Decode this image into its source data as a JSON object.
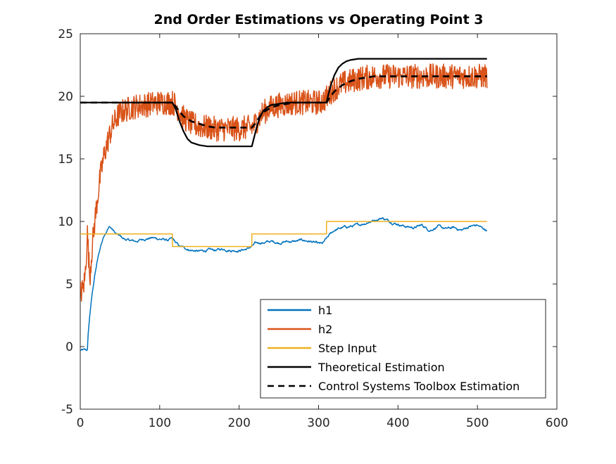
{
  "chart_data": {
    "type": "line",
    "title": "2nd Order Estimations vs Operating Point 3",
    "xlabel": "",
    "ylabel": "",
    "xlim": [
      0,
      600
    ],
    "ylim": [
      -5,
      25
    ],
    "xticks": [
      "0",
      "100",
      "200",
      "300",
      "400",
      "500",
      "600"
    ],
    "yticks": [
      "-5",
      "0",
      "5",
      "10",
      "15",
      "20",
      "25"
    ],
    "grid": false,
    "legend_position": "bottom-right",
    "series": [
      {
        "name": "h1",
        "color": "#0072BD",
        "style": "solid",
        "noise": 0.15,
        "x": [
          0,
          9,
          10,
          12,
          15,
          18,
          22,
          26,
          30,
          34,
          37,
          40,
          45,
          50,
          55,
          60,
          70,
          80,
          90,
          100,
          110,
          116,
          120,
          125,
          130,
          140,
          150,
          160,
          170,
          180,
          190,
          200,
          210,
          216,
          220,
          225,
          230,
          240,
          250,
          260,
          270,
          280,
          290,
          300,
          305,
          310,
          315,
          320,
          330,
          340,
          350,
          360,
          370,
          380,
          390,
          400,
          410,
          420,
          430,
          440,
          450,
          460,
          470,
          480,
          490,
          500,
          505,
          512
        ],
        "y": [
          -0.3,
          -0.3,
          1.0,
          2.5,
          4.2,
          5.6,
          7.0,
          8.1,
          8.9,
          9.4,
          9.6,
          9.4,
          9.0,
          8.8,
          8.6,
          8.5,
          8.4,
          8.6,
          8.7,
          8.6,
          8.5,
          8.6,
          8.3,
          8.0,
          7.9,
          7.7,
          7.6,
          7.7,
          7.7,
          7.8,
          7.7,
          7.7,
          7.8,
          8.0,
          8.2,
          8.3,
          8.3,
          8.4,
          8.3,
          8.4,
          8.4,
          8.5,
          8.4,
          8.2,
          8.2,
          8.6,
          9.0,
          9.3,
          9.5,
          9.6,
          9.7,
          9.9,
          10.1,
          10.3,
          10.0,
          9.8,
          9.6,
          9.5,
          9.7,
          9.3,
          9.6,
          9.4,
          9.5,
          9.3,
          9.6,
          9.7,
          9.5,
          9.3
        ]
      },
      {
        "name": "h2",
        "color": "#D95319",
        "style": "solid",
        "noise": 1.0,
        "x": [
          0,
          3,
          6,
          9,
          12,
          15,
          20,
          25,
          30,
          35,
          40,
          45,
          50,
          60,
          70,
          80,
          90,
          100,
          110,
          116,
          120,
          125,
          130,
          140,
          150,
          160,
          170,
          180,
          190,
          200,
          210,
          216,
          220,
          225,
          230,
          240,
          250,
          260,
          270,
          280,
          290,
          300,
          305,
          310,
          315,
          320,
          330,
          340,
          350,
          360,
          370,
          380,
          390,
          400,
          410,
          420,
          430,
          440,
          450,
          460,
          470,
          480,
          490,
          500,
          512
        ],
        "y": [
          4.3,
          4.5,
          5.5,
          9.0,
          5.5,
          8.0,
          11.0,
          13.5,
          15.3,
          16.5,
          17.5,
          18.2,
          18.7,
          19.0,
          19.2,
          19.3,
          19.4,
          19.5,
          19.5,
          19.5,
          19.3,
          18.8,
          18.3,
          17.8,
          17.6,
          17.5,
          17.4,
          17.4,
          17.4,
          17.4,
          17.5,
          17.5,
          17.8,
          18.3,
          18.7,
          19.1,
          19.3,
          19.4,
          19.5,
          19.5,
          19.5,
          19.5,
          19.6,
          19.9,
          20.3,
          20.6,
          21.0,
          21.2,
          21.4,
          21.5,
          21.6,
          21.6,
          21.6,
          21.6,
          21.6,
          21.6,
          21.6,
          21.6,
          21.6,
          21.6,
          21.6,
          21.6,
          21.6,
          21.6,
          21.6
        ]
      },
      {
        "name": "Step Input",
        "color": "#EDB120",
        "style": "solid",
        "noise": 0,
        "x": [
          0,
          9,
          9,
          116,
          116,
          216,
          216,
          310,
          310,
          512
        ],
        "y": [
          9,
          9,
          9,
          9,
          8,
          8,
          9,
          9,
          10,
          10
        ]
      },
      {
        "name": "Theoretical Estimation",
        "color": "#000000",
        "style": "solid",
        "noise": 0,
        "x": [
          0,
          116,
          120,
          125,
          130,
          135,
          140,
          150,
          160,
          170,
          180,
          190,
          200,
          210,
          216,
          218,
          222,
          226,
          230,
          235,
          240,
          250,
          260,
          270,
          280,
          290,
          300,
          310,
          313,
          316,
          320,
          325,
          330,
          335,
          340,
          345,
          350,
          360,
          370,
          380,
          400,
          450,
          500,
          512
        ],
        "y": [
          19.5,
          19.5,
          19.0,
          18.0,
          17.2,
          16.6,
          16.3,
          16.1,
          16.0,
          16.0,
          16.0,
          16.0,
          16.0,
          16.0,
          16.0,
          16.5,
          17.5,
          18.3,
          18.8,
          19.1,
          19.3,
          19.4,
          19.5,
          19.5,
          19.5,
          19.5,
          19.5,
          19.5,
          20.3,
          21.0,
          21.7,
          22.3,
          22.6,
          22.8,
          22.9,
          22.95,
          23.0,
          23.0,
          23.0,
          23.0,
          23.0,
          23.0,
          23.0,
          23.0
        ]
      },
      {
        "name": "Control Systems Toolbox Estimation",
        "color": "#000000",
        "style": "dashed",
        "noise": 0,
        "x": [
          0,
          116,
          120,
          125,
          130,
          140,
          150,
          160,
          170,
          180,
          190,
          200,
          210,
          216,
          220,
          225,
          230,
          240,
          250,
          260,
          270,
          280,
          290,
          300,
          310,
          315,
          320,
          330,
          340,
          350,
          360,
          370,
          380,
          400,
          450,
          500,
          512
        ],
        "y": [
          19.5,
          19.5,
          19.2,
          18.8,
          18.4,
          18.0,
          17.8,
          17.6,
          17.5,
          17.5,
          17.5,
          17.5,
          17.5,
          17.5,
          17.8,
          18.3,
          18.7,
          19.1,
          19.3,
          19.4,
          19.5,
          19.5,
          19.5,
          19.5,
          19.5,
          20.0,
          20.4,
          20.9,
          21.2,
          21.4,
          21.5,
          21.6,
          21.6,
          21.6,
          21.6,
          21.6,
          21.6
        ]
      }
    ]
  }
}
